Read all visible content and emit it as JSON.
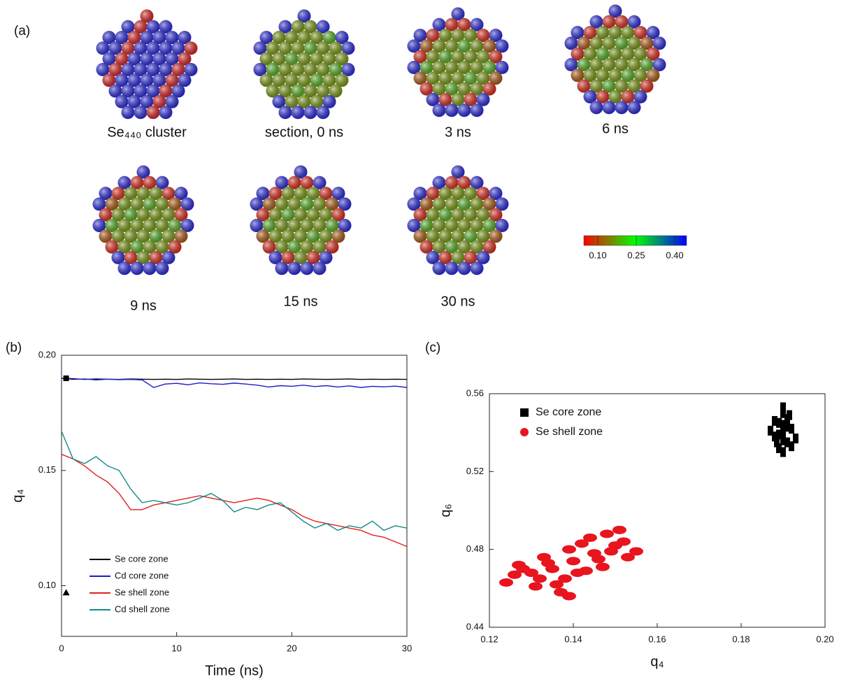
{
  "panel_labels": [
    "(a)",
    "(b)",
    "(c)"
  ],
  "snapshots": [
    "Se₄₄₀ cluster",
    "section, 0 ns",
    "3 ns",
    "6 ns",
    "9 ns",
    "15 ns",
    "30 ns"
  ],
  "colorbar": {
    "ticks": [
      {
        "value": 0.1,
        "label": "0.10"
      },
      {
        "value": 0.25,
        "label": "0.25"
      },
      {
        "value": 0.4,
        "label": "0.40"
      }
    ]
  },
  "chart_data": [
    {
      "type": "line",
      "x_label": "Time (ns)",
      "y_label": "q₄",
      "x": [
        0,
        1,
        2,
        3,
        4,
        5,
        6,
        7,
        8,
        9,
        10,
        11,
        12,
        13,
        14,
        15,
        16,
        17,
        18,
        19,
        20,
        21,
        22,
        23,
        24,
        25,
        26,
        27,
        28,
        29,
        30
      ],
      "xlim": [
        0,
        30
      ],
      "ylim": [
        0.078,
        0.2
      ],
      "xticks": [
        0,
        10,
        20,
        30
      ],
      "yticks": [
        {
          "value": 0.1,
          "label": "0.10"
        },
        0.15,
        {
          "value": 0.2,
          "label": "0.20"
        }
      ],
      "legend": "lower-left",
      "series": [
        {
          "name": "Se core zone",
          "color": "#000000",
          "values": [
            0.19,
            0.1898,
            0.1895,
            0.1897,
            0.1896,
            0.1895,
            0.1897,
            0.1896,
            0.1895,
            0.1896,
            0.1895,
            0.1897,
            0.1896,
            0.1895,
            0.1896,
            0.1897,
            0.1895,
            0.1896,
            0.1895,
            0.1896,
            0.1895,
            0.1897,
            0.1896,
            0.1895,
            0.1896,
            0.1897,
            0.1895,
            0.1896,
            0.1895,
            0.1896,
            0.1895
          ]
        },
        {
          "name": "Cd core zone",
          "color": "#1c1ccc",
          "values": [
            0.19,
            0.1895,
            0.1897,
            0.1893,
            0.1896,
            0.1894,
            0.1895,
            0.1893,
            0.186,
            0.1875,
            0.1878,
            0.1872,
            0.188,
            0.1876,
            0.1874,
            0.1879,
            0.1875,
            0.187,
            0.1862,
            0.1868,
            0.1865,
            0.187,
            0.1864,
            0.1868,
            0.1862,
            0.1867,
            0.186,
            0.1865,
            0.1863,
            0.1866,
            0.186
          ]
        },
        {
          "name": "Se shell zone",
          "color": "#e02020",
          "values": [
            0.157,
            0.155,
            0.152,
            0.148,
            0.145,
            0.14,
            0.133,
            0.133,
            0.135,
            0.136,
            0.137,
            0.138,
            0.139,
            0.138,
            0.137,
            0.136,
            0.137,
            0.138,
            0.137,
            0.135,
            0.133,
            0.13,
            0.128,
            0.127,
            0.126,
            0.125,
            0.124,
            0.122,
            0.121,
            0.119,
            0.117
          ]
        },
        {
          "name": "Cd shell zone",
          "color": "#138a8a",
          "values": [
            0.167,
            0.155,
            0.153,
            0.156,
            0.152,
            0.15,
            0.142,
            0.136,
            0.137,
            0.136,
            0.135,
            0.136,
            0.138,
            0.14,
            0.137,
            0.132,
            0.134,
            0.133,
            0.135,
            0.136,
            0.132,
            0.128,
            0.125,
            0.127,
            0.124,
            0.126,
            0.125,
            0.128,
            0.124,
            0.126,
            0.125
          ]
        }
      ],
      "points": [
        {
          "shape": "square",
          "x": 0.4,
          "y": 0.19
        },
        {
          "shape": "triangle",
          "x": 0.4,
          "y": 0.097
        }
      ]
    },
    {
      "type": "scatter",
      "x_label": "q₄",
      "y_label": "q₆",
      "xlim": [
        0.12,
        0.2
      ],
      "ylim": [
        0.44,
        0.56
      ],
      "xticks": [
        0.12,
        0.14,
        0.16,
        0.18,
        {
          "value": 0.2,
          "label": "0.20"
        }
      ],
      "yticks": [
        0.44,
        0.48,
        0.52,
        0.56
      ],
      "legend": "upper-left",
      "series": [
        {
          "name": "Se core zone",
          "color": "#000000",
          "marker": "square",
          "x": [
            0.19,
            0.189,
            0.191,
            0.188,
            0.192,
            0.19,
            0.189,
            0.191,
            0.187,
            0.193,
            0.19,
            0.19,
            0.188,
            0.192,
            0.189,
            0.191,
            0.1885,
            0.1915,
            0.19,
            0.19
          ],
          "values": [
            0.54,
            0.545,
            0.535,
            0.538,
            0.542,
            0.55,
            0.532,
            0.547,
            0.541,
            0.537,
            0.553,
            0.53,
            0.546,
            0.533,
            0.539,
            0.543,
            0.535,
            0.549,
            0.544,
            0.536
          ]
        },
        {
          "name": "Se shell zone",
          "color": "#e8141e",
          "marker": "circle",
          "x": [
            0.14,
            0.135,
            0.145,
            0.13,
            0.15,
            0.138,
            0.142,
            0.127,
            0.153,
            0.133,
            0.147,
            0.136,
            0.144,
            0.124,
            0.155,
            0.141,
            0.139,
            0.132,
            0.148,
            0.128,
            0.137,
            0.146,
            0.134,
            0.143,
            0.151,
            0.131,
            0.149,
            0.139,
            0.126,
            0.152
          ],
          "values": [
            0.474,
            0.47,
            0.478,
            0.468,
            0.482,
            0.465,
            0.483,
            0.472,
            0.476,
            0.476,
            0.471,
            0.462,
            0.486,
            0.463,
            0.479,
            0.468,
            0.48,
            0.465,
            0.488,
            0.47,
            0.458,
            0.475,
            0.473,
            0.469,
            0.49,
            0.461,
            0.479,
            0.456,
            0.467,
            0.484
          ]
        }
      ]
    }
  ]
}
